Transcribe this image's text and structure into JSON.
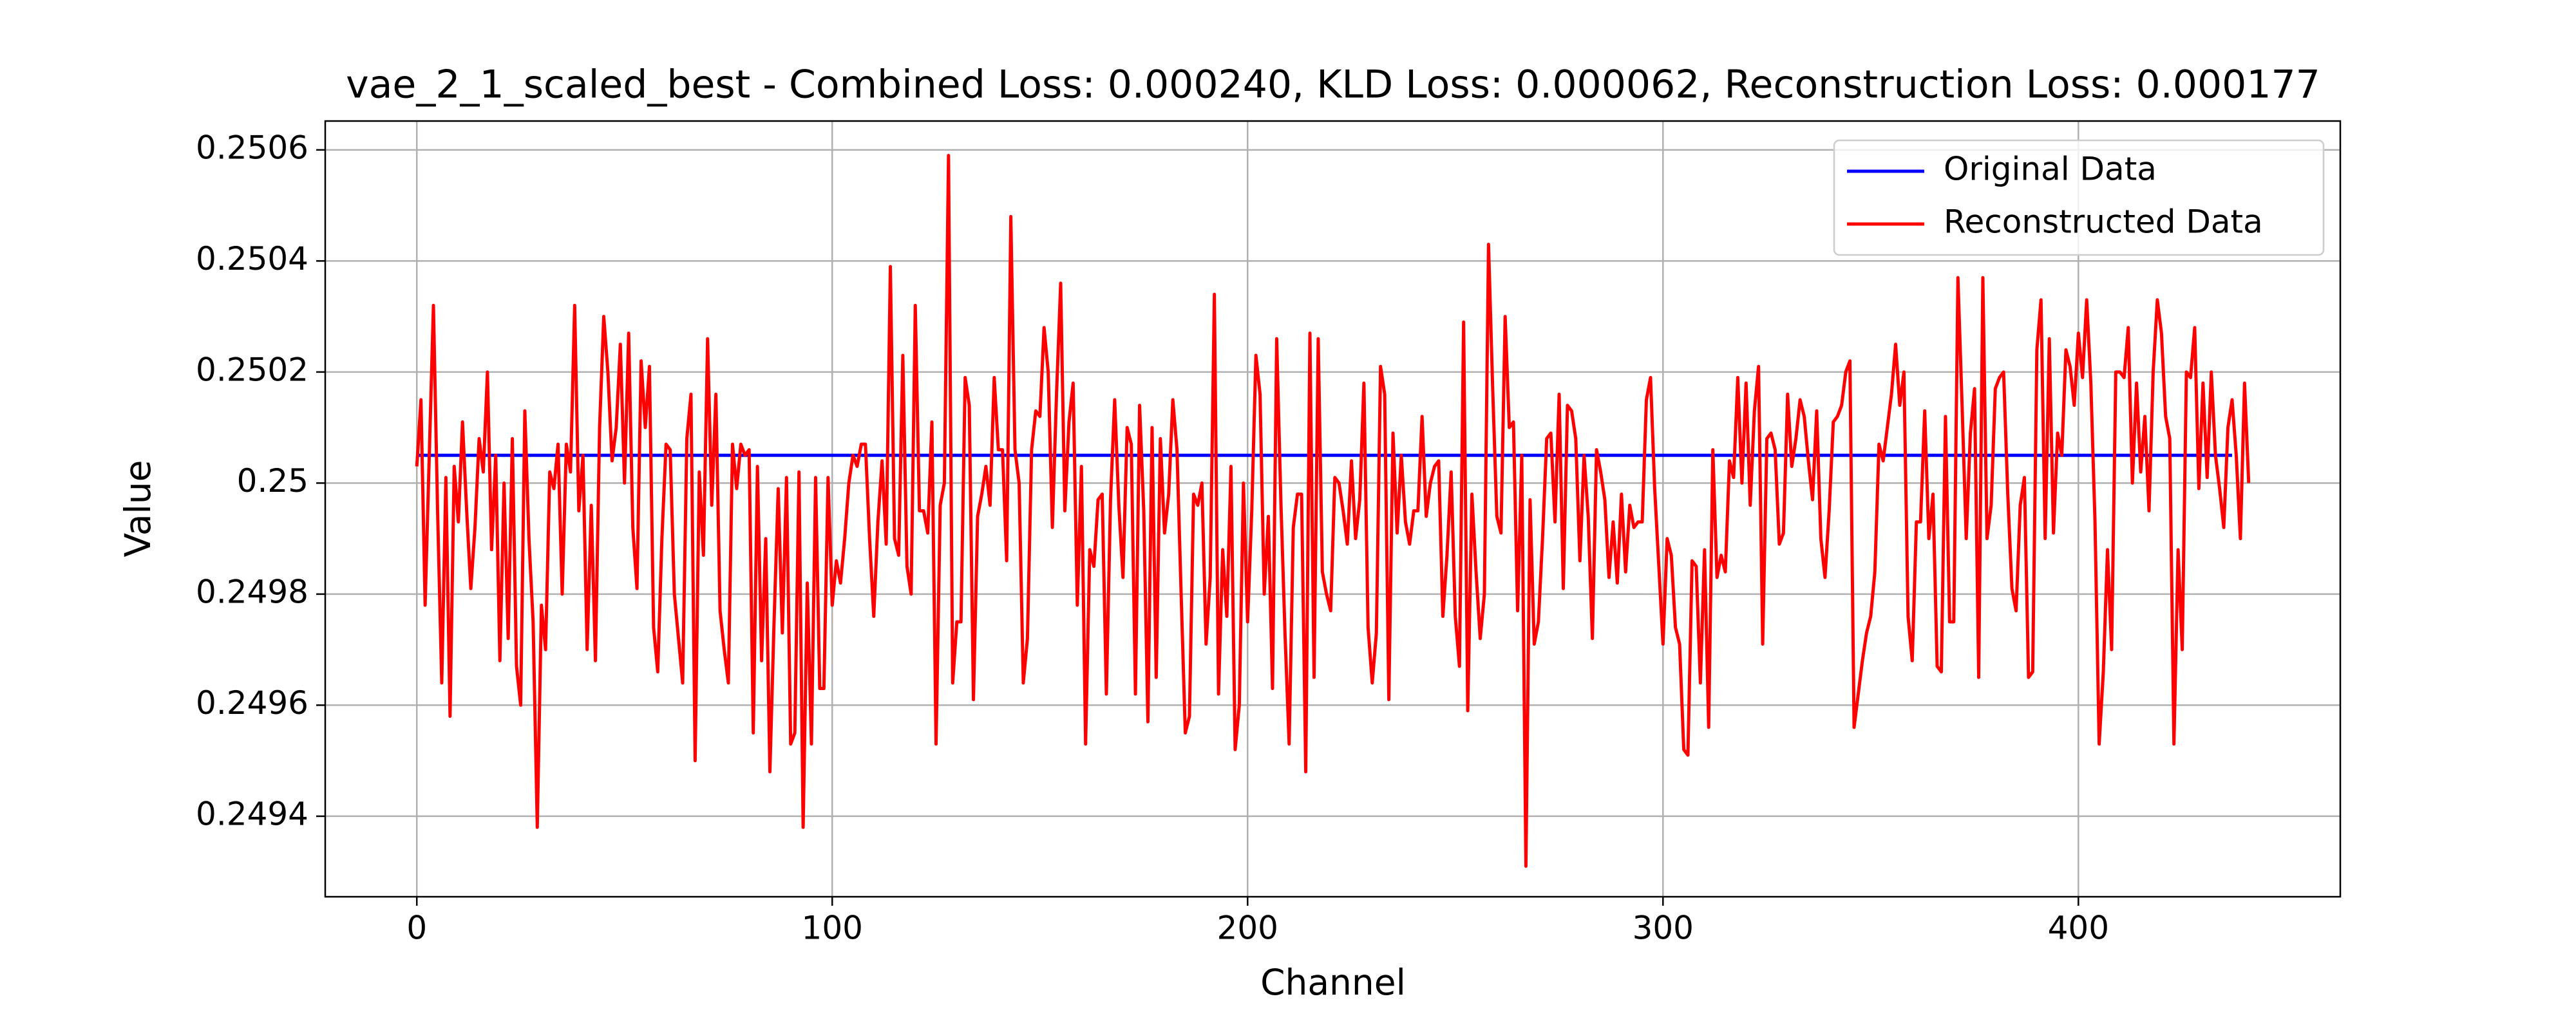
{
  "chart_data": {
    "type": "line",
    "title": "vae_2_1_scaled_best - Combined Loss: 0.000240, KLD Loss: 0.000062, Reconstruction Loss: 0.000177",
    "x_label": "Channel",
    "y_label": "Value",
    "xlim": [
      -22.05,
      463.05
    ],
    "xticks": [
      0,
      100,
      200,
      300,
      400
    ],
    "ylim": [
      0.249255,
      0.250652
    ],
    "yticks": [
      0.2494,
      0.2496,
      0.2498,
      0.25,
      0.2502,
      0.2504,
      0.2506
    ],
    "yticks_labels_note_free": null,
    "grid": true,
    "legend": "upper right",
    "series": [
      {
        "name": "Original Data",
        "color": "#0000ff",
        "values": [
          0.25005,
          0.25005,
          0.25005,
          0.25005,
          0.25005,
          0.25005,
          0.25005,
          0.25005,
          0.25005,
          0.25005,
          0.25005,
          0.25005,
          0.25005,
          0.25005,
          0.25005,
          0.25005,
          0.25005,
          0.25005,
          0.25005,
          0.25005,
          0.25005,
          0.25005,
          0.25005,
          0.25005,
          0.25005,
          0.25005,
          0.25005,
          0.25005,
          0.25005,
          0.25005,
          0.25005,
          0.25005,
          0.25005,
          0.25005,
          0.25005,
          0.25005,
          0.25005,
          0.25005,
          0.25005,
          0.25005,
          0.25005,
          0.25005,
          0.25005,
          0.25005,
          0.25005,
          0.25005,
          0.25005,
          0.25005,
          0.25005,
          0.25005,
          0.25005,
          0.25005,
          0.25005,
          0.25005,
          0.25005,
          0.25005,
          0.25005,
          0.25005,
          0.25005,
          0.25005,
          0.25005,
          0.25005,
          0.25005,
          0.25005,
          0.25005,
          0.25005,
          0.25005,
          0.25005,
          0.25005,
          0.25005,
          0.25005,
          0.25005,
          0.25005,
          0.25005,
          0.25005,
          0.25005,
          0.25005,
          0.25005,
          0.25005,
          0.25005,
          0.25005,
          0.25005,
          0.25005,
          0.25005,
          0.25005,
          0.25005,
          0.25005,
          0.25005,
          0.25005,
          0.25005,
          0.25005,
          0.25005,
          0.25005,
          0.25005,
          0.25005,
          0.25005,
          0.25005,
          0.25005,
          0.25005,
          0.25005,
          0.25005,
          0.25005,
          0.25005,
          0.25005,
          0.25005,
          0.25005,
          0.25005,
          0.25005,
          0.25005,
          0.25005,
          0.25005,
          0.25005,
          0.25005,
          0.25005,
          0.25005,
          0.25005,
          0.25005,
          0.25005,
          0.25005,
          0.25005,
          0.25005,
          0.25005,
          0.25005,
          0.25005,
          0.25005,
          0.25005,
          0.25005,
          0.25005,
          0.25005,
          0.25005,
          0.25005,
          0.25005,
          0.25005,
          0.25005,
          0.25005,
          0.25005,
          0.25005,
          0.25005,
          0.25005,
          0.25005,
          0.25005,
          0.25005,
          0.25005,
          0.25005,
          0.25005,
          0.25005,
          0.25005,
          0.25005,
          0.25005,
          0.25005,
          0.25005,
          0.25005,
          0.25005,
          0.25005,
          0.25005,
          0.25005,
          0.25005,
          0.25005,
          0.25005,
          0.25005,
          0.25005,
          0.25005,
          0.25005,
          0.25005,
          0.25005,
          0.25005,
          0.25005,
          0.25005,
          0.25005,
          0.25005,
          0.25005,
          0.25005,
          0.25005,
          0.25005,
          0.25005,
          0.25005,
          0.25005,
          0.25005,
          0.25005,
          0.25005,
          0.25005,
          0.25005,
          0.25005,
          0.25005,
          0.25005,
          0.25005,
          0.25005,
          0.25005,
          0.25005,
          0.25005,
          0.25005,
          0.25005,
          0.25005,
          0.25005,
          0.25005,
          0.25005,
          0.25005,
          0.25005,
          0.25005,
          0.25005,
          0.25005,
          0.25005,
          0.25005,
          0.25005,
          0.25005,
          0.25005,
          0.25005,
          0.25005,
          0.25005,
          0.25005,
          0.25005,
          0.25005,
          0.25005,
          0.25005,
          0.25005,
          0.25005,
          0.25005,
          0.25005,
          0.25005,
          0.25005,
          0.25005,
          0.25005,
          0.25005,
          0.25005,
          0.25005,
          0.25005,
          0.25005,
          0.25005,
          0.25005,
          0.25005,
          0.25005,
          0.25005,
          0.25005,
          0.25005,
          0.25005,
          0.25005,
          0.25005,
          0.25005,
          0.25005,
          0.25005,
          0.25005,
          0.25005,
          0.25005,
          0.25005,
          0.25005,
          0.25005,
          0.25005,
          0.25005,
          0.25005,
          0.25005,
          0.25005,
          0.25005,
          0.25005,
          0.25005,
          0.25005,
          0.25005,
          0.25005,
          0.25005,
          0.25005,
          0.25005,
          0.25005,
          0.25005,
          0.25005,
          0.25005,
          0.25005,
          0.25005,
          0.25005,
          0.25005,
          0.25005,
          0.25005,
          0.25005,
          0.25005,
          0.25005,
          0.25005,
          0.25005,
          0.25005,
          0.25005,
          0.25005,
          0.25005,
          0.25005,
          0.25005,
          0.25005,
          0.25005,
          0.25005,
          0.25005,
          0.25005,
          0.25005,
          0.25005,
          0.25005,
          0.25005,
          0.25005,
          0.25005,
          0.25005,
          0.25005,
          0.25005,
          0.25005,
          0.25005,
          0.25005,
          0.25005,
          0.25005,
          0.25005,
          0.25005,
          0.25005,
          0.25005,
          0.25005,
          0.25005,
          0.25005,
          0.25005,
          0.25005,
          0.25005,
          0.25005,
          0.25005,
          0.25005,
          0.25005,
          0.25005,
          0.25005,
          0.25005,
          0.25005,
          0.25005,
          0.25005,
          0.25005,
          0.25005,
          0.25005,
          0.25005,
          0.25005,
          0.25005,
          0.25005,
          0.25005,
          0.25005,
          0.25005,
          0.25005,
          0.25005,
          0.25005,
          0.25005,
          0.25005,
          0.25005,
          0.25005,
          0.25005,
          0.25005,
          0.25005,
          0.25005,
          0.25005,
          0.25005,
          0.25005,
          0.25005,
          0.25005,
          0.25005,
          0.25005,
          0.25005,
          0.25005,
          0.25005,
          0.25005,
          0.25005,
          0.25005,
          0.25005,
          0.25005,
          0.25005,
          0.25005,
          0.25005,
          0.25005,
          0.25005,
          0.25005,
          0.25005,
          0.25005,
          0.25005,
          0.25005,
          0.25005,
          0.25005,
          0.25005,
          0.25005,
          0.25005,
          0.25005,
          0.25005,
          0.25005,
          0.25005,
          0.25005,
          0.25005,
          0.25005,
          0.25005,
          0.25005,
          0.25005,
          0.25005,
          0.25005,
          0.25005,
          0.25005,
          0.25005,
          0.25005,
          0.25005,
          0.25005,
          0.25005,
          0.25005,
          0.25005,
          0.25005,
          0.25005,
          0.25005,
          0.25005,
          0.25005,
          0.25005,
          0.25005,
          0.25005,
          0.25005,
          0.25005,
          0.25005,
          0.25005,
          0.25005,
          0.25005,
          0.25005,
          0.25005,
          0.25005,
          0.25005,
          0.25005,
          0.25005,
          0.25005,
          0.25005,
          0.25005,
          0.25005,
          0.25005,
          0.25005,
          0.25005,
          0.25005,
          0.25005,
          0.25005,
          0.25005,
          0.25005,
          0.25005,
          0.25005,
          0.25005,
          0.25005,
          0.25005,
          0.25005,
          0.25005,
          0.25005,
          0.25005,
          0.25005,
          0.25005,
          0.25005,
          0.25005,
          0.25005
        ]
      },
      {
        "name": "Reconstructed Data",
        "color": "#ff0000",
        "values": [
          0.25003,
          0.25015,
          0.24978,
          0.25005,
          0.25032,
          0.24995,
          0.24964,
          0.25001,
          0.24958,
          0.25003,
          0.24993,
          0.25011,
          0.24995,
          0.24981,
          0.24992,
          0.25008,
          0.25002,
          0.2502,
          0.24988,
          0.25005,
          0.24968,
          0.25,
          0.24972,
          0.25008,
          0.24967,
          0.2496,
          0.25013,
          0.2499,
          0.24975,
          0.24938,
          0.24978,
          0.2497,
          0.25002,
          0.24999,
          0.25007,
          0.2498,
          0.25007,
          0.25002,
          0.25032,
          0.24995,
          0.25005,
          0.2497,
          0.24996,
          0.24968,
          0.2501,
          0.2503,
          0.2502,
          0.25004,
          0.2501,
          0.25025,
          0.25,
          0.25027,
          0.24992,
          0.24981,
          0.25022,
          0.2501,
          0.25021,
          0.24974,
          0.24966,
          0.2499,
          0.25007,
          0.25006,
          0.2498,
          0.24972,
          0.24964,
          0.25008,
          0.25016,
          0.2495,
          0.25002,
          0.24987,
          0.25026,
          0.24996,
          0.25016,
          0.24977,
          0.2497,
          0.24964,
          0.25007,
          0.24999,
          0.25007,
          0.25005,
          0.25006,
          0.24955,
          0.25003,
          0.24968,
          0.2499,
          0.24948,
          0.24975,
          0.24999,
          0.24973,
          0.25001,
          0.24953,
          0.24955,
          0.25002,
          0.24938,
          0.24982,
          0.24953,
          0.25001,
          0.24963,
          0.24963,
          0.25001,
          0.24978,
          0.24986,
          0.24982,
          0.2499,
          0.25,
          0.25005,
          0.25003,
          0.25007,
          0.25007,
          0.2499,
          0.24976,
          0.24993,
          0.25004,
          0.24989,
          0.25039,
          0.2499,
          0.24987,
          0.25023,
          0.24985,
          0.2498,
          0.25032,
          0.24995,
          0.24995,
          0.24991,
          0.25011,
          0.24953,
          0.24996,
          0.25,
          0.25059,
          0.24964,
          0.24975,
          0.24975,
          0.25019,
          0.25014,
          0.24961,
          0.24994,
          0.24998,
          0.25003,
          0.24996,
          0.25019,
          0.25006,
          0.25006,
          0.24986,
          0.25048,
          0.25006,
          0.25,
          0.24964,
          0.24972,
          0.25006,
          0.25013,
          0.25012,
          0.25028,
          0.2502,
          0.24992,
          0.25016,
          0.25036,
          0.24995,
          0.25011,
          0.25018,
          0.24978,
          0.25003,
          0.24953,
          0.24988,
          0.24985,
          0.24997,
          0.24998,
          0.24962,
          0.24997,
          0.25015,
          0.24996,
          0.24983,
          0.2501,
          0.25007,
          0.24962,
          0.25014,
          0.24995,
          0.24957,
          0.2501,
          0.24965,
          0.25008,
          0.24991,
          0.24998,
          0.25015,
          0.25006,
          0.2498,
          0.24955,
          0.24958,
          0.24998,
          0.24996,
          0.25,
          0.24971,
          0.24983,
          0.25034,
          0.24962,
          0.24988,
          0.24976,
          0.25003,
          0.24952,
          0.2496,
          0.25,
          0.24975,
          0.24995,
          0.25023,
          0.25016,
          0.2498,
          0.24994,
          0.24963,
          0.25026,
          0.24997,
          0.24973,
          0.24953,
          0.24992,
          0.24998,
          0.24998,
          0.24948,
          0.25027,
          0.24965,
          0.25026,
          0.24984,
          0.2498,
          0.24977,
          0.25001,
          0.25,
          0.24995,
          0.24989,
          0.25004,
          0.2499,
          0.24997,
          0.25018,
          0.24974,
          0.24964,
          0.24973,
          0.25021,
          0.25016,
          0.24961,
          0.25009,
          0.24991,
          0.25005,
          0.24993,
          0.24989,
          0.24995,
          0.24995,
          0.25012,
          0.24994,
          0.25,
          0.25003,
          0.25004,
          0.24976,
          0.24987,
          0.25002,
          0.24976,
          0.24967,
          0.25029,
          0.24959,
          0.24998,
          0.24984,
          0.24972,
          0.2498,
          0.25043,
          0.25017,
          0.24994,
          0.24991,
          0.2503,
          0.2501,
          0.25011,
          0.24977,
          0.25005,
          0.24931,
          0.24997,
          0.24971,
          0.24975,
          0.2499,
          0.25008,
          0.25009,
          0.24993,
          0.25016,
          0.24981,
          0.25014,
          0.25013,
          0.25008,
          0.24986,
          0.25005,
          0.24994,
          0.24972,
          0.25006,
          0.25002,
          0.24997,
          0.24983,
          0.24993,
          0.24982,
          0.24998,
          0.24984,
          0.24996,
          0.24992,
          0.24993,
          0.24993,
          0.25015,
          0.25019,
          0.24999,
          0.24985,
          0.24971,
          0.2499,
          0.24987,
          0.24974,
          0.24971,
          0.24952,
          0.24951,
          0.24986,
          0.24985,
          0.24964,
          0.24988,
          0.24956,
          0.25006,
          0.24983,
          0.24987,
          0.24984,
          0.25004,
          0.25001,
          0.25019,
          0.25,
          0.25018,
          0.24996,
          0.25013,
          0.25021,
          0.24971,
          0.25008,
          0.25009,
          0.25006,
          0.24989,
          0.24991,
          0.25016,
          0.25003,
          0.25008,
          0.25015,
          0.25012,
          0.25004,
          0.24997,
          0.25013,
          0.2499,
          0.24983,
          0.24995,
          0.25011,
          0.25012,
          0.25014,
          0.2502,
          0.25022,
          0.24956,
          0.24962,
          0.24968,
          0.24973,
          0.24976,
          0.24984,
          0.25007,
          0.25004,
          0.2501,
          0.25016,
          0.25025,
          0.25014,
          0.2502,
          0.24976,
          0.24968,
          0.24993,
          0.24993,
          0.25013,
          0.2499,
          0.24998,
          0.24967,
          0.24966,
          0.25012,
          0.24975,
          0.24975,
          0.25037,
          0.25014,
          0.2499,
          0.25009,
          0.25017,
          0.24965,
          0.25037,
          0.2499,
          0.24996,
          0.25017,
          0.25019,
          0.2502,
          0.24998,
          0.24981,
          0.24977,
          0.24996,
          0.25001,
          0.24965,
          0.24966,
          0.25024,
          0.25033,
          0.2499,
          0.25026,
          0.24991,
          0.25009,
          0.25005,
          0.25024,
          0.25021,
          0.25014,
          0.25027,
          0.25019,
          0.25033,
          0.25018,
          0.24993,
          0.24953,
          0.24966,
          0.24988,
          0.2497,
          0.2502,
          0.2502,
          0.25019,
          0.25028,
          0.25,
          0.25018,
          0.25002,
          0.25012,
          0.24995,
          0.2502,
          0.25033,
          0.25027,
          0.25012,
          0.25008,
          0.24953,
          0.24988,
          0.2497,
          0.2502,
          0.25019,
          0.25028,
          0.24999,
          0.25018,
          0.25001,
          0.2502,
          0.25005,
          0.24999,
          0.24992,
          0.2501,
          0.25015,
          0.25005,
          0.2499,
          0.25018,
          0.25
        ]
      }
    ]
  }
}
